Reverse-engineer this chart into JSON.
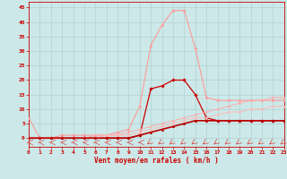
{
  "x": [
    0,
    1,
    2,
    3,
    4,
    5,
    6,
    7,
    8,
    9,
    10,
    11,
    12,
    13,
    14,
    15,
    16,
    17,
    18,
    19,
    20,
    21,
    22,
    23
  ],
  "series": [
    {
      "name": "light_pink_peak",
      "color": "#ff9999",
      "linewidth": 0.8,
      "marker": "o",
      "markersize": 1.8,
      "values": [
        7,
        0,
        0,
        1,
        1,
        1,
        1,
        1,
        2,
        3,
        11,
        32,
        39,
        44,
        44,
        31,
        14,
        13,
        13,
        13,
        13,
        13,
        13,
        13
      ]
    },
    {
      "name": "dark_red_peak",
      "color": "#cc0000",
      "linewidth": 0.9,
      "marker": "D",
      "markersize": 1.8,
      "values": [
        0,
        0,
        0,
        0,
        0,
        0,
        0,
        0,
        0,
        0,
        1,
        17,
        18,
        20,
        20,
        15,
        7,
        6,
        6,
        6,
        6,
        6,
        6,
        6
      ]
    },
    {
      "name": "pink_linear_high",
      "color": "#ffaaaa",
      "linewidth": 0.7,
      "marker": "o",
      "markersize": 1.5,
      "values": [
        0,
        0,
        0,
        0,
        0,
        0,
        1,
        1,
        1,
        2,
        3,
        4,
        5,
        6,
        7,
        8,
        9,
        10,
        11,
        12,
        13,
        13,
        14,
        14
      ]
    },
    {
      "name": "pink_linear_mid",
      "color": "#ffbbbb",
      "linewidth": 0.7,
      "marker": "o",
      "markersize": 1.5,
      "values": [
        0,
        0,
        0,
        0,
        0,
        0,
        0,
        1,
        1,
        1,
        2,
        3,
        4,
        5,
        6,
        7,
        7,
        8,
        9,
        9,
        10,
        10,
        11,
        11
      ]
    },
    {
      "name": "dark_red_linear",
      "color": "#bb0000",
      "linewidth": 1.2,
      "marker": "^",
      "markersize": 1.8,
      "values": [
        0,
        0,
        0,
        0,
        0,
        0,
        0,
        0,
        0,
        0,
        1,
        2,
        3,
        4,
        5,
        6,
        6,
        6,
        6,
        6,
        6,
        6,
        6,
        6
      ]
    }
  ],
  "xlabel": "Vent moyen/en rafales ( km/h )",
  "xlim": [
    0,
    23
  ],
  "ylim": [
    -3,
    47
  ],
  "yticks": [
    0,
    5,
    10,
    15,
    20,
    25,
    30,
    35,
    40,
    45
  ],
  "xticks": [
    0,
    1,
    2,
    3,
    4,
    5,
    6,
    7,
    8,
    9,
    10,
    11,
    12,
    13,
    14,
    15,
    16,
    17,
    18,
    19,
    20,
    21,
    22,
    23
  ],
  "background_color": "#cce8e8",
  "grid_color": "#aacccc",
  "tick_color": "#cc0000",
  "label_color": "#cc0000",
  "arrow_color": "#dd4444"
}
